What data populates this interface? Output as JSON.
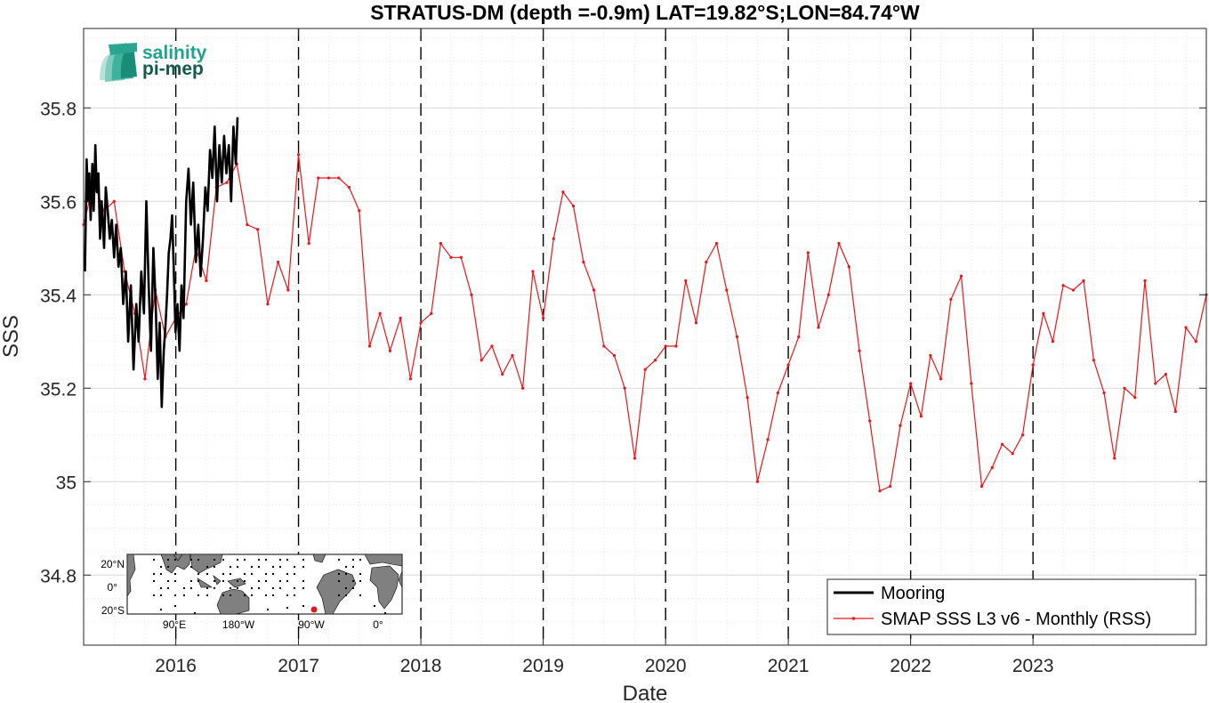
{
  "colors": {
    "mooring": "#000000",
    "smap": "#e8161b",
    "vline": "#000000",
    "land": "#808080"
  },
  "logo": {
    "line1": "salinity",
    "line2": "pi-mep"
  },
  "chart_data": {
    "type": "line",
    "title": "STRATUS-DM (depth =-0.9m) LAT=19.82°S;LON=84.74°W",
    "xlabel": "Date",
    "ylabel": "SSS",
    "xlim": [
      "2015-04-01",
      "2024-06-01"
    ],
    "ylim": [
      34.65,
      35.97
    ],
    "grid": "minor dotted",
    "x_ticks": [
      "2016",
      "2017",
      "2018",
      "2019",
      "2020",
      "2021",
      "2022",
      "2023"
    ],
    "y_ticks": [
      "34.8",
      "35",
      "35.2",
      "35.4",
      "35.6",
      "35.8"
    ],
    "vlines": [
      "2016-01-01",
      "2017-01-01",
      "2018-01-01",
      "2019-01-01",
      "2020-01-01",
      "2021-01-01",
      "2022-01-01",
      "2023-01-01"
    ],
    "legend": {
      "position": "bottom-right",
      "entries": [
        "Mooring",
        "SMAP SSS L3 v6 - Monthly (RSS)"
      ]
    },
    "series": [
      {
        "name": "Mooring",
        "x": [
          "2015-04-05",
          "2015-04-10",
          "2015-04-14",
          "2015-04-18",
          "2015-04-22",
          "2015-04-27",
          "2015-05-01",
          "2015-05-06",
          "2015-05-10",
          "2015-05-15",
          "2015-05-20",
          "2015-05-25",
          "2015-06-01",
          "2015-06-06",
          "2015-06-12",
          "2015-06-18",
          "2015-06-24",
          "2015-07-01",
          "2015-07-07",
          "2015-07-14",
          "2015-07-21",
          "2015-07-28",
          "2015-08-05",
          "2015-08-12",
          "2015-08-20",
          "2015-08-28",
          "2015-09-05",
          "2015-09-12",
          "2015-09-20",
          "2015-09-28",
          "2015-10-05",
          "2015-10-12",
          "2015-10-19",
          "2015-10-26",
          "2015-11-02",
          "2015-11-08",
          "2015-11-14",
          "2015-11-20",
          "2015-11-26",
          "2015-12-01",
          "2015-12-06",
          "2015-12-11",
          "2015-12-16",
          "2015-12-21",
          "2015-12-26",
          "2015-12-31",
          "2016-01-06",
          "2016-01-12",
          "2016-01-18",
          "2016-01-24",
          "2016-02-01",
          "2016-02-08",
          "2016-02-15",
          "2016-02-22",
          "2016-03-01",
          "2016-03-08",
          "2016-03-15",
          "2016-03-22",
          "2016-03-29",
          "2016-04-05",
          "2016-04-12",
          "2016-04-19",
          "2016-04-26",
          "2016-05-03",
          "2016-05-10",
          "2016-05-17",
          "2016-05-24",
          "2016-05-31",
          "2016-06-07",
          "2016-06-14",
          "2016-06-21",
          "2016-06-28",
          "2016-07-03"
        ],
        "y": [
          35.45,
          35.69,
          35.6,
          35.66,
          35.56,
          35.68,
          35.58,
          35.72,
          35.62,
          35.66,
          35.52,
          35.6,
          35.5,
          35.63,
          35.58,
          35.52,
          35.56,
          35.48,
          35.55,
          35.46,
          35.5,
          35.38,
          35.45,
          35.3,
          35.42,
          35.24,
          35.38,
          35.3,
          35.45,
          35.36,
          35.6,
          35.42,
          35.28,
          35.5,
          35.38,
          35.22,
          35.34,
          35.16,
          35.28,
          35.33,
          35.4,
          35.49,
          35.52,
          35.57,
          35.45,
          35.32,
          35.38,
          35.28,
          35.42,
          35.35,
          35.6,
          35.67,
          35.55,
          35.64,
          35.47,
          35.55,
          35.44,
          35.52,
          35.63,
          35.58,
          35.71,
          35.65,
          35.76,
          35.6,
          35.72,
          35.64,
          35.74,
          35.66,
          35.72,
          35.6,
          35.76,
          35.68,
          35.78
        ]
      },
      {
        "name": "SMAP SSS L3 v6 - Monthly (RSS)",
        "x": [
          "2015-04-01",
          "2015-05-01",
          "2015-06-01",
          "2015-07-01",
          "2015-08-01",
          "2015-09-01",
          "2015-10-01",
          "2015-11-01",
          "2015-12-01",
          "2016-01-01",
          "2016-02-01",
          "2016-03-01",
          "2016-04-01",
          "2016-05-01",
          "2016-06-01",
          "2016-07-01",
          "2016-08-01",
          "2016-09-01",
          "2016-10-01",
          "2016-11-01",
          "2016-12-01",
          "2017-01-01",
          "2017-02-01",
          "2017-03-01",
          "2017-04-01",
          "2017-05-01",
          "2017-06-01",
          "2017-07-01",
          "2017-08-01",
          "2017-09-01",
          "2017-10-01",
          "2017-11-01",
          "2017-12-01",
          "2018-01-01",
          "2018-02-01",
          "2018-03-01",
          "2018-04-01",
          "2018-05-01",
          "2018-06-01",
          "2018-07-01",
          "2018-08-01",
          "2018-09-01",
          "2018-10-01",
          "2018-11-01",
          "2018-12-01",
          "2019-01-01",
          "2019-02-01",
          "2019-03-01",
          "2019-04-01",
          "2019-05-01",
          "2019-06-01",
          "2019-07-01",
          "2019-08-01",
          "2019-09-01",
          "2019-10-01",
          "2019-11-01",
          "2019-12-01",
          "2020-01-01",
          "2020-02-01",
          "2020-03-01",
          "2020-04-01",
          "2020-05-01",
          "2020-06-01",
          "2020-07-01",
          "2020-08-01",
          "2020-09-01",
          "2020-10-01",
          "2020-11-01",
          "2020-12-01",
          "2021-01-01",
          "2021-02-01",
          "2021-03-01",
          "2021-04-01",
          "2021-05-01",
          "2021-06-01",
          "2021-07-01",
          "2021-08-01",
          "2021-09-01",
          "2021-10-01",
          "2021-11-01",
          "2021-12-01",
          "2022-01-01",
          "2022-02-01",
          "2022-03-01",
          "2022-04-01",
          "2022-05-01",
          "2022-06-01",
          "2022-07-01",
          "2022-08-01",
          "2022-09-01",
          "2022-10-01",
          "2022-11-01",
          "2022-12-01",
          "2023-01-01",
          "2023-02-01",
          "2023-03-01",
          "2023-04-01",
          "2023-05-01",
          "2023-06-01",
          "2023-07-01",
          "2023-08-01",
          "2023-09-01",
          "2023-10-01",
          "2023-11-01",
          "2023-12-01",
          "2024-01-01",
          "2024-02-01",
          "2024-03-01",
          "2024-04-01",
          "2024-05-01",
          "2024-06-01"
        ],
        "y": [
          35.55,
          35.64,
          35.58,
          35.6,
          35.45,
          35.36,
          35.22,
          35.41,
          35.31,
          35.35,
          35.38,
          35.5,
          35.43,
          35.63,
          35.64,
          35.68,
          35.55,
          35.54,
          35.38,
          35.47,
          35.41,
          35.7,
          35.51,
          35.65,
          35.65,
          35.65,
          35.63,
          35.58,
          35.29,
          35.36,
          35.28,
          35.35,
          35.22,
          35.34,
          35.36,
          35.51,
          35.48,
          35.48,
          35.4,
          35.26,
          35.29,
          35.23,
          35.27,
          35.2,
          35.45,
          35.35,
          35.52,
          35.62,
          35.59,
          35.47,
          35.41,
          35.29,
          35.27,
          35.2,
          35.05,
          35.24,
          35.26,
          35.29,
          35.29,
          35.43,
          35.34,
          35.47,
          35.51,
          35.41,
          35.31,
          35.18,
          35.0,
          35.09,
          35.19,
          35.25,
          35.31,
          35.49,
          35.33,
          35.4,
          35.51,
          35.46,
          35.28,
          35.13,
          34.98,
          34.99,
          35.12,
          35.21,
          35.14,
          35.27,
          35.22,
          35.39,
          35.44,
          35.21,
          34.99,
          35.03,
          35.08,
          35.06,
          35.1,
          35.25,
          35.36,
          35.3,
          35.42,
          35.41,
          35.43,
          35.26,
          35.19,
          35.05,
          35.2,
          35.18,
          35.43,
          35.21,
          35.23,
          35.15,
          35.33,
          35.3,
          35.4
        ]
      }
    ]
  },
  "inset_map": {
    "lat_labels": [
      "20°N",
      "0°",
      "20°S"
    ],
    "lon_labels": [
      "90°E",
      "180°W",
      "90°W",
      "0°"
    ],
    "marker_color": "#e8161b"
  }
}
